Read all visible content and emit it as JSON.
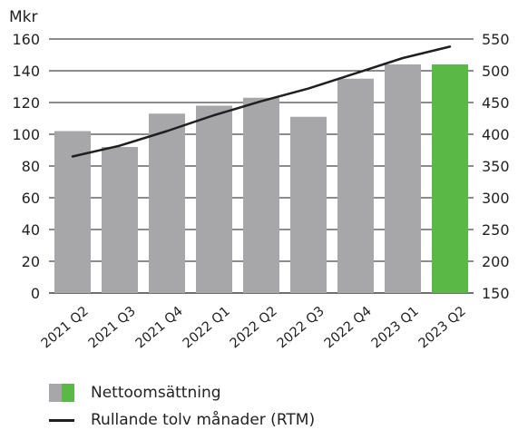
{
  "chart_data": {
    "type": "bar+line",
    "left_unit": "Mkr",
    "categories": [
      "2021 Q2",
      "2021 Q3",
      "2021 Q4",
      "2022 Q1",
      "2022 Q2",
      "2022 Q3",
      "2022 Q4",
      "2023 Q1",
      "2023 Q2"
    ],
    "series": [
      {
        "name": "Nettoomsättning",
        "type": "bar",
        "axis": "left",
        "values": [
          102,
          92,
          113,
          118,
          123,
          111,
          135,
          144,
          144
        ],
        "color": "#a7a7aa",
        "highlight_color": "#5ab946",
        "highlight_index": 8
      },
      {
        "name": "Rullande tolv månader (RTM)",
        "type": "line",
        "axis": "right",
        "values": [
          365,
          382,
          405,
          430,
          452,
          472,
          496,
          520,
          538
        ],
        "color": "#1f1f1f"
      }
    ],
    "y_left": {
      "min": 0,
      "max": 160,
      "ticks": [
        "0",
        "20",
        "40",
        "60",
        "80",
        "100",
        "120",
        "140",
        "160"
      ]
    },
    "y_right": {
      "min": 150,
      "max": 550,
      "ticks": [
        "150",
        "200",
        "250",
        "300",
        "350",
        "400",
        "450",
        "500",
        "550"
      ]
    },
    "grid": true,
    "gridline_color": "#1a1a1a",
    "legend_position": "bottom-left"
  }
}
